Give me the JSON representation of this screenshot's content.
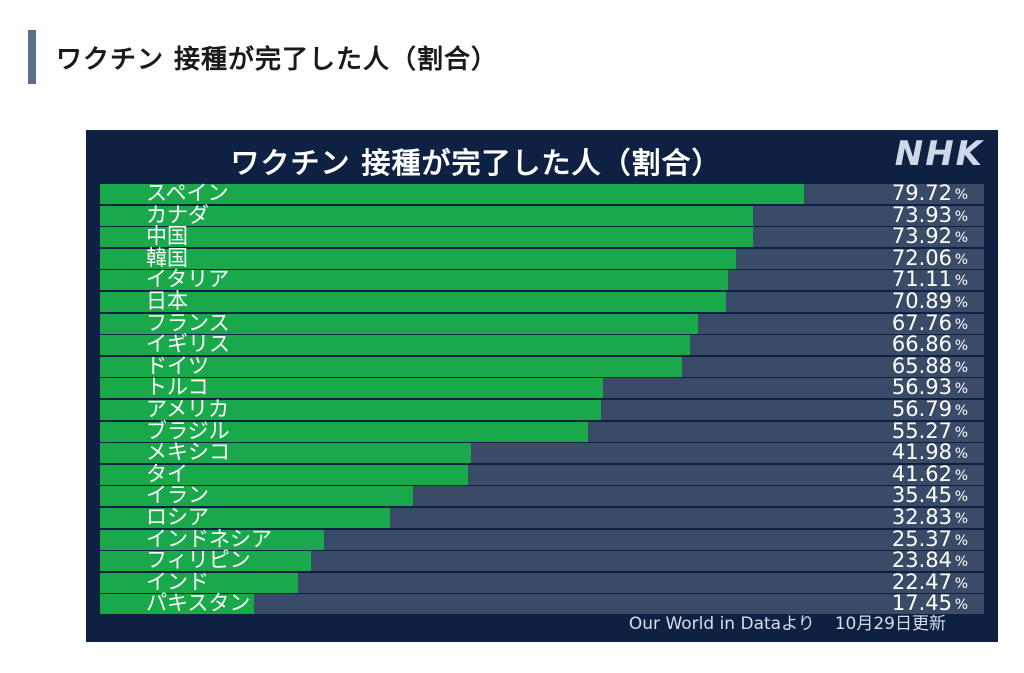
{
  "page": {
    "heading": "ワクチン 接種が完了した人（割合）"
  },
  "chart_data": {
    "type": "bar",
    "orientation": "horizontal",
    "title": "ワクチン 接種が完了した人（割合）",
    "brand": "NHK",
    "unit": "%",
    "xlim": [
      0,
      100
    ],
    "categories": [
      "スペイン",
      "カナダ",
      "中国",
      "韓国",
      "イタリア",
      "日本",
      "フランス",
      "イギリス",
      "ドイツ",
      "トルコ",
      "アメリカ",
      "ブラジル",
      "メキシコ",
      "タイ",
      "イラン",
      "ロシア",
      "インドネシア",
      "フィリピン",
      "インド",
      "パキスタン"
    ],
    "values": [
      "79.72",
      "73.93",
      "73.92",
      "72.06",
      "71.11",
      "70.89",
      "67.76",
      "66.86",
      "65.88",
      "56.93",
      "56.79",
      "55.27",
      "41.98",
      "41.62",
      "35.45",
      "32.83",
      "25.37",
      "23.84",
      "22.47",
      "17.45"
    ],
    "source": "Our World in Dataより",
    "updated": "10月29日更新",
    "colors": {
      "fill": "#1aa94a",
      "track": "#3a4b67",
      "background": "#0e2142"
    }
  }
}
